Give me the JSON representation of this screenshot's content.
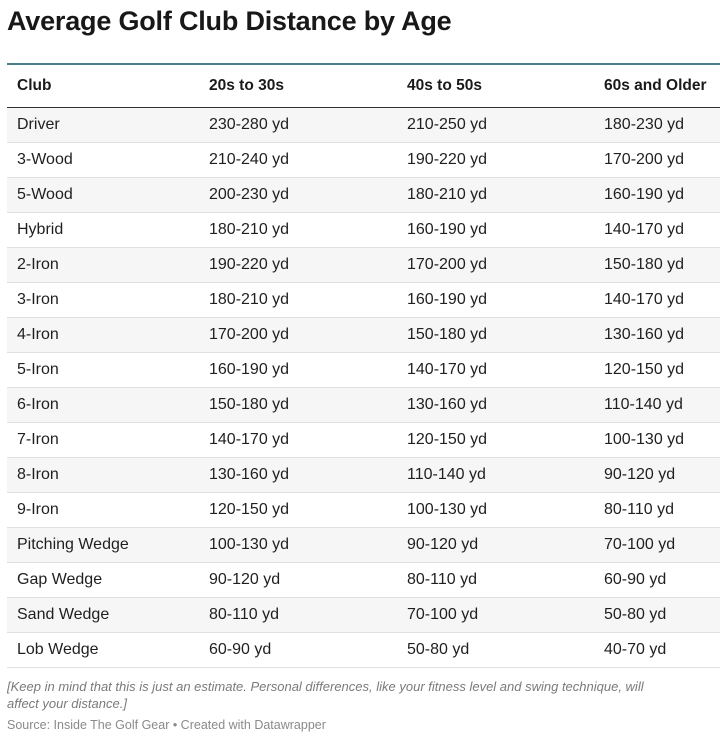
{
  "title": "Average Golf Club Distance by Age",
  "note_line1": "[Keep in mind that this is just an estimate. Personal differences, like your fitness level and swing technique, will",
  "note_line2": "affect your distance.]",
  "source": "Source: Inside The Golf Gear • Created with Datawrapper",
  "colors": {
    "header_rule": "#4a7c8a",
    "stripe": "#f6f6f6"
  },
  "chart_data": {
    "type": "table",
    "title": "Average Golf Club Distance by Age",
    "columns": [
      "Club",
      "20s to 30s",
      "40s to 50s",
      "60s and Older"
    ],
    "rows": [
      [
        "Driver",
        "230-280 yd",
        "210-250 yd",
        "180-230 yd"
      ],
      [
        "3-Wood",
        "210-240 yd",
        "190-220 yd",
        "170-200 yd"
      ],
      [
        "5-Wood",
        "200-230 yd",
        "180-210 yd",
        "160-190 yd"
      ],
      [
        "Hybrid",
        "180-210 yd",
        "160-190 yd",
        "140-170 yd"
      ],
      [
        "2-Iron",
        "190-220 yd",
        "170-200 yd",
        "150-180 yd"
      ],
      [
        "3-Iron",
        "180-210 yd",
        "160-190 yd",
        "140-170 yd"
      ],
      [
        "4-Iron",
        "170-200 yd",
        "150-180 yd",
        "130-160 yd"
      ],
      [
        "5-Iron",
        "160-190 yd",
        "140-170 yd",
        "120-150 yd"
      ],
      [
        "6-Iron",
        "150-180 yd",
        "130-160 yd",
        "110-140 yd"
      ],
      [
        "7-Iron",
        "140-170 yd",
        "120-150 yd",
        "100-130 yd"
      ],
      [
        "8-Iron",
        "130-160 yd",
        "110-140 yd",
        "90-120 yd"
      ],
      [
        "9-Iron",
        "120-150 yd",
        "100-130 yd",
        "80-110 yd"
      ],
      [
        "Pitching Wedge",
        "100-130 yd",
        "90-120 yd",
        "70-100 yd"
      ],
      [
        "Gap Wedge",
        "90-120 yd",
        "80-110 yd",
        "60-90 yd"
      ],
      [
        "Sand Wedge",
        "80-110 yd",
        "70-100 yd",
        "50-80 yd"
      ],
      [
        "Lob Wedge",
        "60-90 yd",
        "50-80 yd",
        "40-70 yd"
      ]
    ]
  }
}
